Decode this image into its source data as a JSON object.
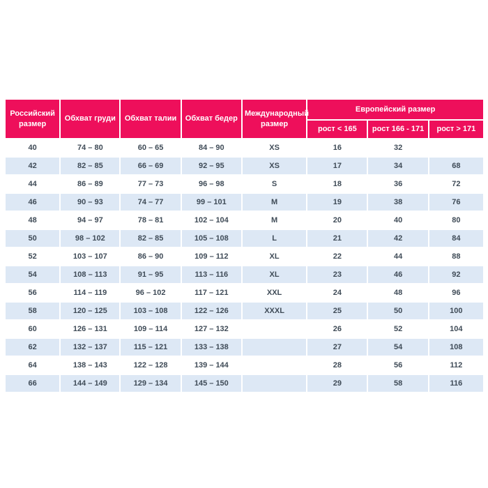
{
  "colors": {
    "header_bg": "#ee0f5b",
    "header_text": "#ffffff",
    "row_bg": "#ffffff",
    "row_alt_bg": "#dde8f5",
    "cell_text": "#3f4b57"
  },
  "chart_data": {
    "type": "table",
    "title": "",
    "group_header": "Европейский размер",
    "columns": [
      "Российский размер",
      "Обхват груди",
      "Обхват талии",
      "Обхват бедер",
      "Международный размер",
      "рост < 165",
      "рост 166 - 171",
      "рост > 171"
    ],
    "rows": [
      [
        "40",
        "74 – 80",
        "60 – 65",
        "84 – 90",
        "XS",
        "16",
        "32",
        ""
      ],
      [
        "42",
        "82 – 85",
        "66 – 69",
        "92 – 95",
        "XS",
        "17",
        "34",
        "68"
      ],
      [
        "44",
        "86 – 89",
        "77 – 73",
        "96 – 98",
        "S",
        "18",
        "36",
        "72"
      ],
      [
        "46",
        "90 – 93",
        "74 – 77",
        "99 – 101",
        "M",
        "19",
        "38",
        "76"
      ],
      [
        "48",
        "94 – 97",
        "78 – 81",
        "102 – 104",
        "M",
        "20",
        "40",
        "80"
      ],
      [
        "50",
        "98 – 102",
        "82 – 85",
        "105 – 108",
        "L",
        "21",
        "42",
        "84"
      ],
      [
        "52",
        "103 – 107",
        "86 – 90",
        "109 – 112",
        "XL",
        "22",
        "44",
        "88"
      ],
      [
        "54",
        "108 – 113",
        "91 – 95",
        "113 – 116",
        "XL",
        "23",
        "46",
        "92"
      ],
      [
        "56",
        "114 – 119",
        "96 – 102",
        "117 – 121",
        "XXL",
        "24",
        "48",
        "96"
      ],
      [
        "58",
        "120 – 125",
        "103 – 108",
        "122 – 126",
        "XXXL",
        "25",
        "50",
        "100"
      ],
      [
        "60",
        "126 – 131",
        "109 – 114",
        "127 – 132",
        "",
        "26",
        "52",
        "104"
      ],
      [
        "62",
        "132 – 137",
        "115 – 121",
        "133 – 138",
        "",
        "27",
        "54",
        "108"
      ],
      [
        "64",
        "138 – 143",
        "122 – 128",
        "139 – 144",
        "",
        "28",
        "56",
        "112"
      ],
      [
        "66",
        "144 – 149",
        "129 – 134",
        "145 – 150",
        "",
        "29",
        "58",
        "116"
      ]
    ],
    "layout": {
      "grid": "white 2px separators",
      "striping": "alternate rows light blue starting with second data row",
      "group_header_spans": [
        "рост < 165",
        "рост 166 - 171",
        "рост > 171"
      ]
    }
  }
}
